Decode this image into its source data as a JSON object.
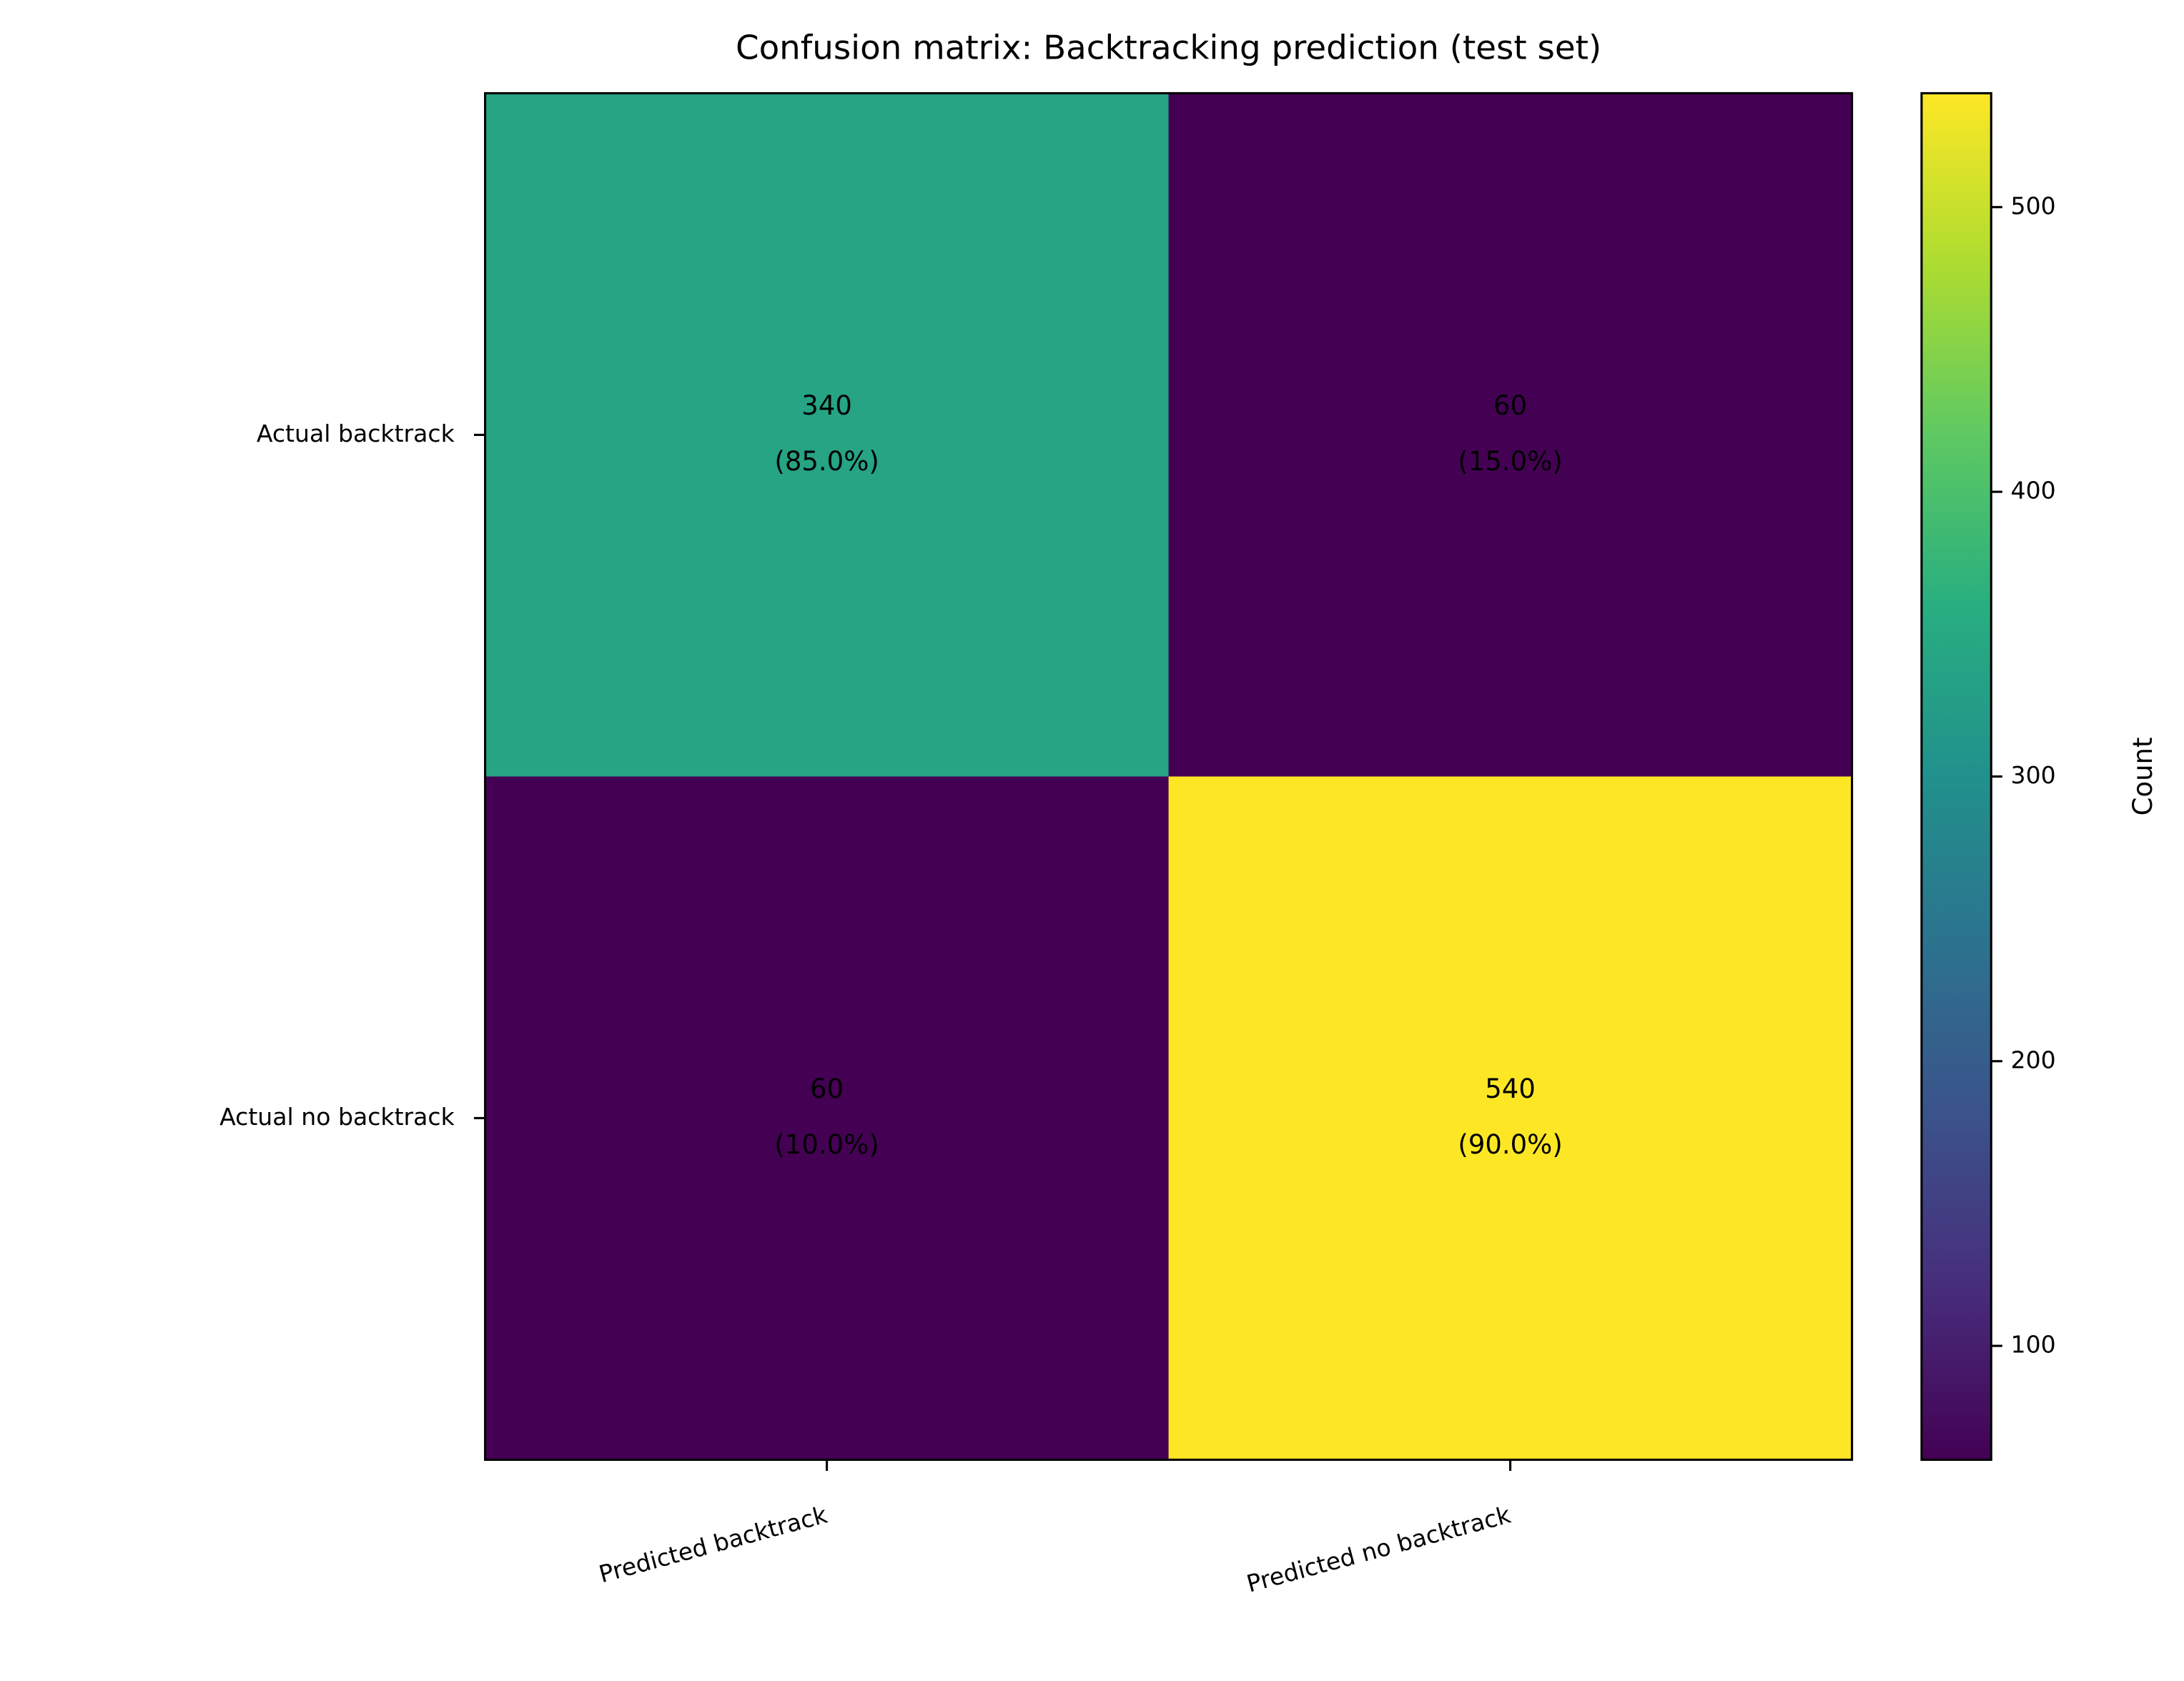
{
  "chart_data": {
    "type": "heatmap",
    "title": "Confusion matrix: Backtracking prediction (test set)",
    "x_categories": [
      "Predicted backtrack",
      "Predicted no backtrack"
    ],
    "y_categories": [
      "Actual backtrack",
      "Actual no backtrack"
    ],
    "values": [
      [
        340,
        60
      ],
      [
        60,
        540
      ]
    ],
    "percent_labels": [
      [
        "(85.0%)",
        "(15.0%)"
      ],
      [
        "(10.0%)",
        "(90.0%)"
      ]
    ],
    "colormap": "viridis",
    "clim": [
      60,
      540
    ],
    "colorbar_ticks": [
      100,
      200,
      300,
      400,
      500
    ],
    "colorbar_label": "Count"
  }
}
